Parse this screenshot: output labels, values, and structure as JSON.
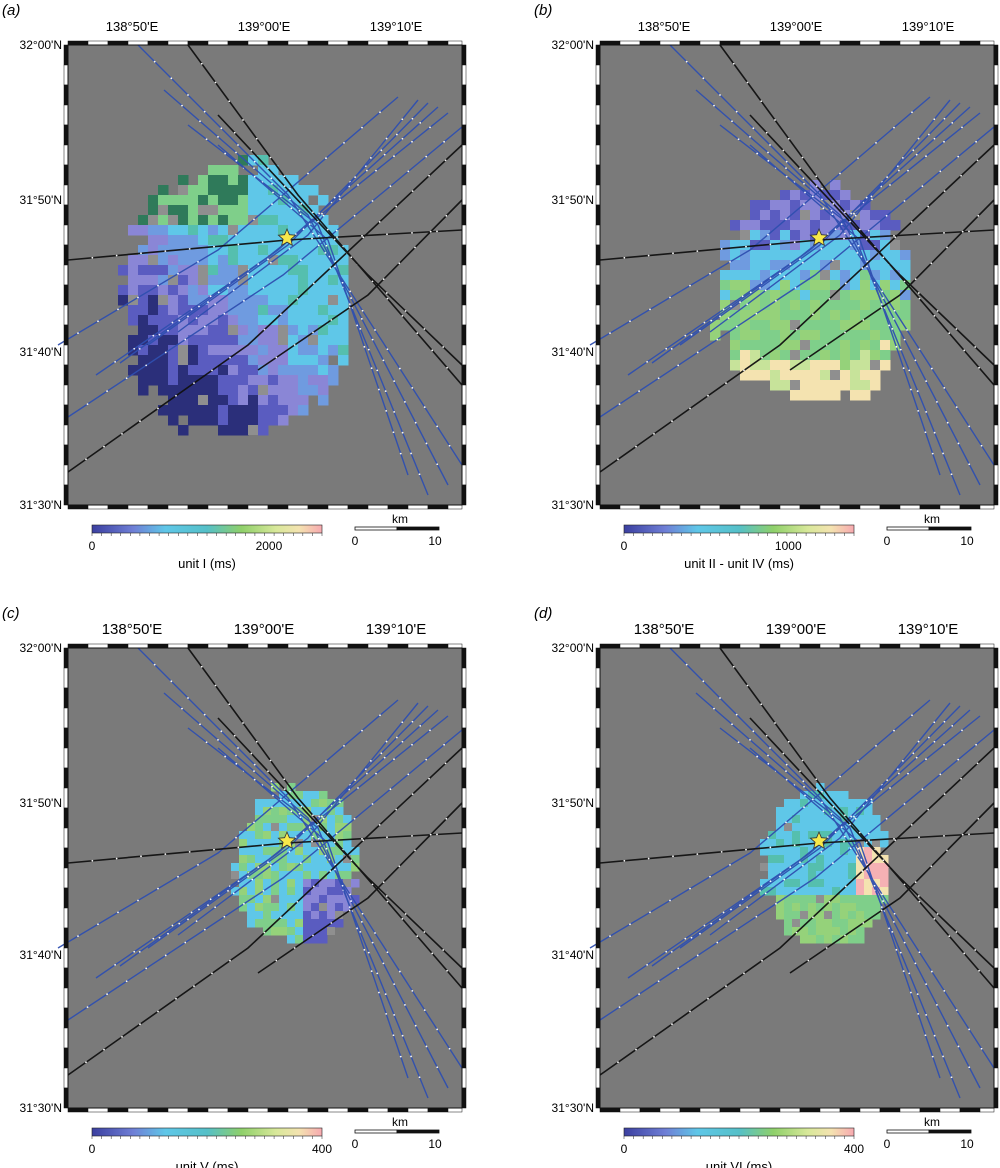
{
  "figure": {
    "lon_ticks": [
      "138°50'E",
      "139°00'E",
      "139°10'E"
    ],
    "lat_ticks": [
      "32°00'N",
      "31°50'N",
      "31°40'N",
      "31°30'N"
    ],
    "scale_bar": {
      "unit": "km",
      "labels": [
        "0",
        "10"
      ]
    },
    "colors": {
      "background": "#7a7a7a",
      "frame": "#111111",
      "track_blue": "#2f4fb0",
      "track_black": "#111111",
      "epicenter_star": "#f7e84a"
    },
    "epicenter_icon": "star-icon"
  },
  "panels": [
    {
      "id": "a",
      "label": "(a)",
      "colorbar": {
        "title": "unit I (ms)",
        "min_label": "0",
        "max_label": "2000",
        "range": [
          0,
          2600
        ]
      }
    },
    {
      "id": "b",
      "label": "(b)",
      "colorbar": {
        "title": "unit II - unit IV (ms)",
        "min_label": "0",
        "max_label": "1000",
        "range": [
          0,
          1400
        ]
      }
    },
    {
      "id": "c",
      "label": "(c)",
      "colorbar": {
        "title": "unit V (ms)",
        "min_label": "0",
        "max_label": "400",
        "range": [
          0,
          400
        ]
      }
    },
    {
      "id": "d",
      "label": "(d)",
      "colorbar": {
        "title": "unit VI (ms)",
        "min_label": "0",
        "max_label": "400",
        "range": [
          0,
          400
        ]
      }
    }
  ]
}
